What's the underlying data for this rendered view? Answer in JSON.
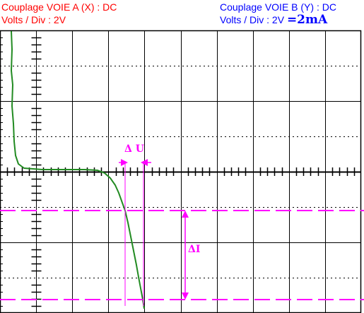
{
  "channel_a": {
    "coupling": "Couplage VOIE A (X) : DC",
    "volts_div": "Volts / Div : 2V",
    "color": "#ff0000"
  },
  "channel_b": {
    "coupling": "Couplage VOIE B (Y) : DC",
    "volts_div": "Volts / Div : 2V",
    "conversion": "=2mA",
    "color": "#0000ff"
  },
  "annotations": {
    "delta_u": "Δ U",
    "delta_i": "ΔI",
    "color": "#ff00ff"
  },
  "trace": {
    "color": "#228b22"
  },
  "grid": {
    "divisions_x": 10,
    "divisions_y": 8
  }
}
